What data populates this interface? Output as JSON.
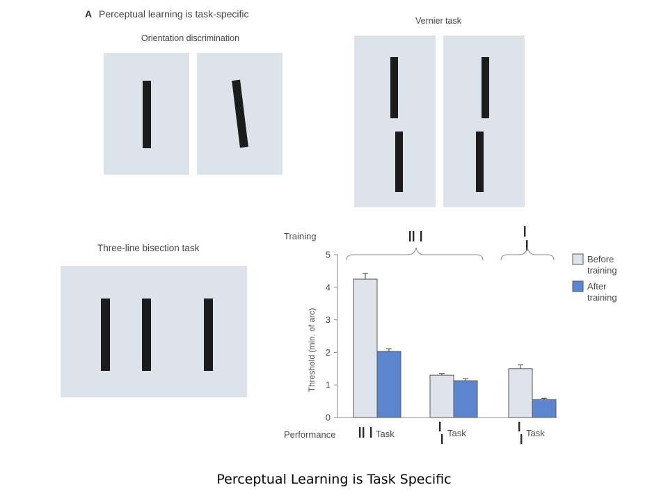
{
  "panel": {
    "label": "A",
    "title": "Perceptual learning is task-specific"
  },
  "stimuli": {
    "orientation_title": "Orientation discrimination",
    "vernier_title": "Vernier task",
    "bisection_title": "Three-line bisection task"
  },
  "colors": {
    "stimulus_background": "#dde3ea",
    "line": "#1c1c1c",
    "before_bar": "#dfe4ec",
    "after_bar": "#5b86cf"
  },
  "chart_data": {
    "type": "bar",
    "ylabel": "Threshold (min. of arc)",
    "ylim": [
      0,
      5
    ],
    "yticks": [
      "0",
      "1",
      "2",
      "3",
      "4",
      "5"
    ],
    "row_labels": {
      "training": "Training",
      "performance": "Performance"
    },
    "categories": [
      "three-line bisection (||| Task)",
      "vernier (Task)",
      "vernier (Task)"
    ],
    "category_suffix": "Task",
    "series": [
      {
        "name": "Before training",
        "values": [
          4.25,
          1.3,
          1.5
        ],
        "errors": [
          0.18,
          0.05,
          0.12
        ]
      },
      {
        "name": "After training",
        "values": [
          2.03,
          1.13,
          0.55
        ],
        "errors": [
          0.08,
          0.06,
          0.04
        ]
      }
    ],
    "legend": {
      "before": [
        "Before",
        "training"
      ],
      "after": [
        "After",
        "training"
      ]
    },
    "legend_position": "right"
  },
  "caption": "Perceptual Learning is Task Specific"
}
